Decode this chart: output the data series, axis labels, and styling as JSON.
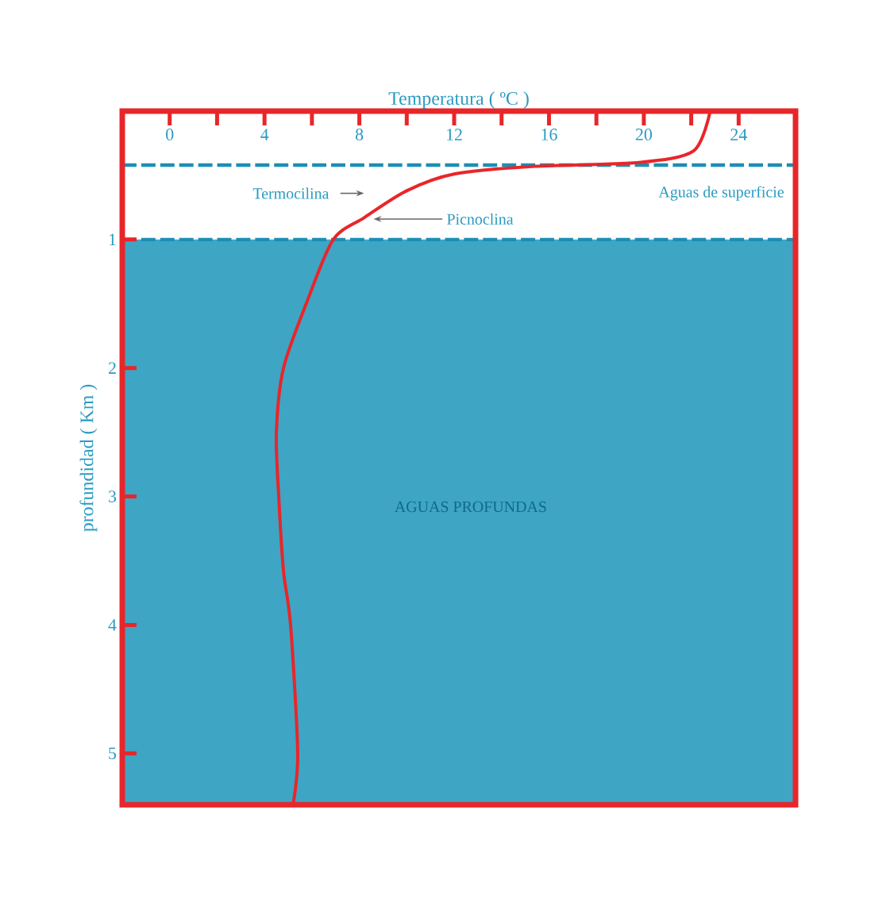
{
  "chart_data": {
    "type": "line",
    "xlabel": "Temperatura ( ºC )",
    "ylabel": "profundidad ( Km )",
    "annotations": [
      "Termocilina",
      {
        "text": "Picnoclina",
        "x": 8.6,
        "y": 0.84
      },
      "Aguas de superficie",
      "AGUAS PROFUNDAS"
    ],
    "series": [
      {
        "color": "#e8262a",
        "x": [
          22.8,
          22.1,
          19.8,
          15.4,
          12.0,
          10.0,
          8.2,
          6.9,
          5.8,
          4.8,
          4.5,
          4.6,
          4.8,
          5.1,
          5.4,
          5.2
        ],
        "values": [
          0,
          0.31,
          0.4,
          0.43,
          0.49,
          0.62,
          0.83,
          1.0,
          1.48,
          2.0,
          2.5,
          3.0,
          3.58,
          4.0,
          5.0,
          5.4
        ]
      }
    ],
    "xlim": [
      -2,
      26.4
    ],
    "xticks": [
      0,
      {
        "value": 2,
        "label": null
      },
      4,
      {
        "value": 6,
        "label": null
      },
      8,
      {
        "value": 10,
        "label": null
      },
      12,
      {
        "value": 14,
        "label": null
      },
      16,
      {
        "value": 18,
        "label": null
      },
      20,
      {
        "value": 22,
        "label": null
      },
      24
    ],
    "ylim": [
      5.4,
      0
    ],
    "yticks": [
      1,
      2,
      3,
      4,
      5
    ],
    "ref_lines": [
      {
        "axis": "y",
        "value": 0.42,
        "color": "#1b8fb5",
        "line_style": "dashed"
      },
      {
        "axis": "y",
        "value": 1,
        "color": "#1b8fb5",
        "line_style": "dashed"
      }
    ],
    "bands": [
      {
        "axis": "y",
        "from": 1,
        "to": 5.4,
        "color": "#3fa5c4"
      }
    ],
    "grid": false
  }
}
